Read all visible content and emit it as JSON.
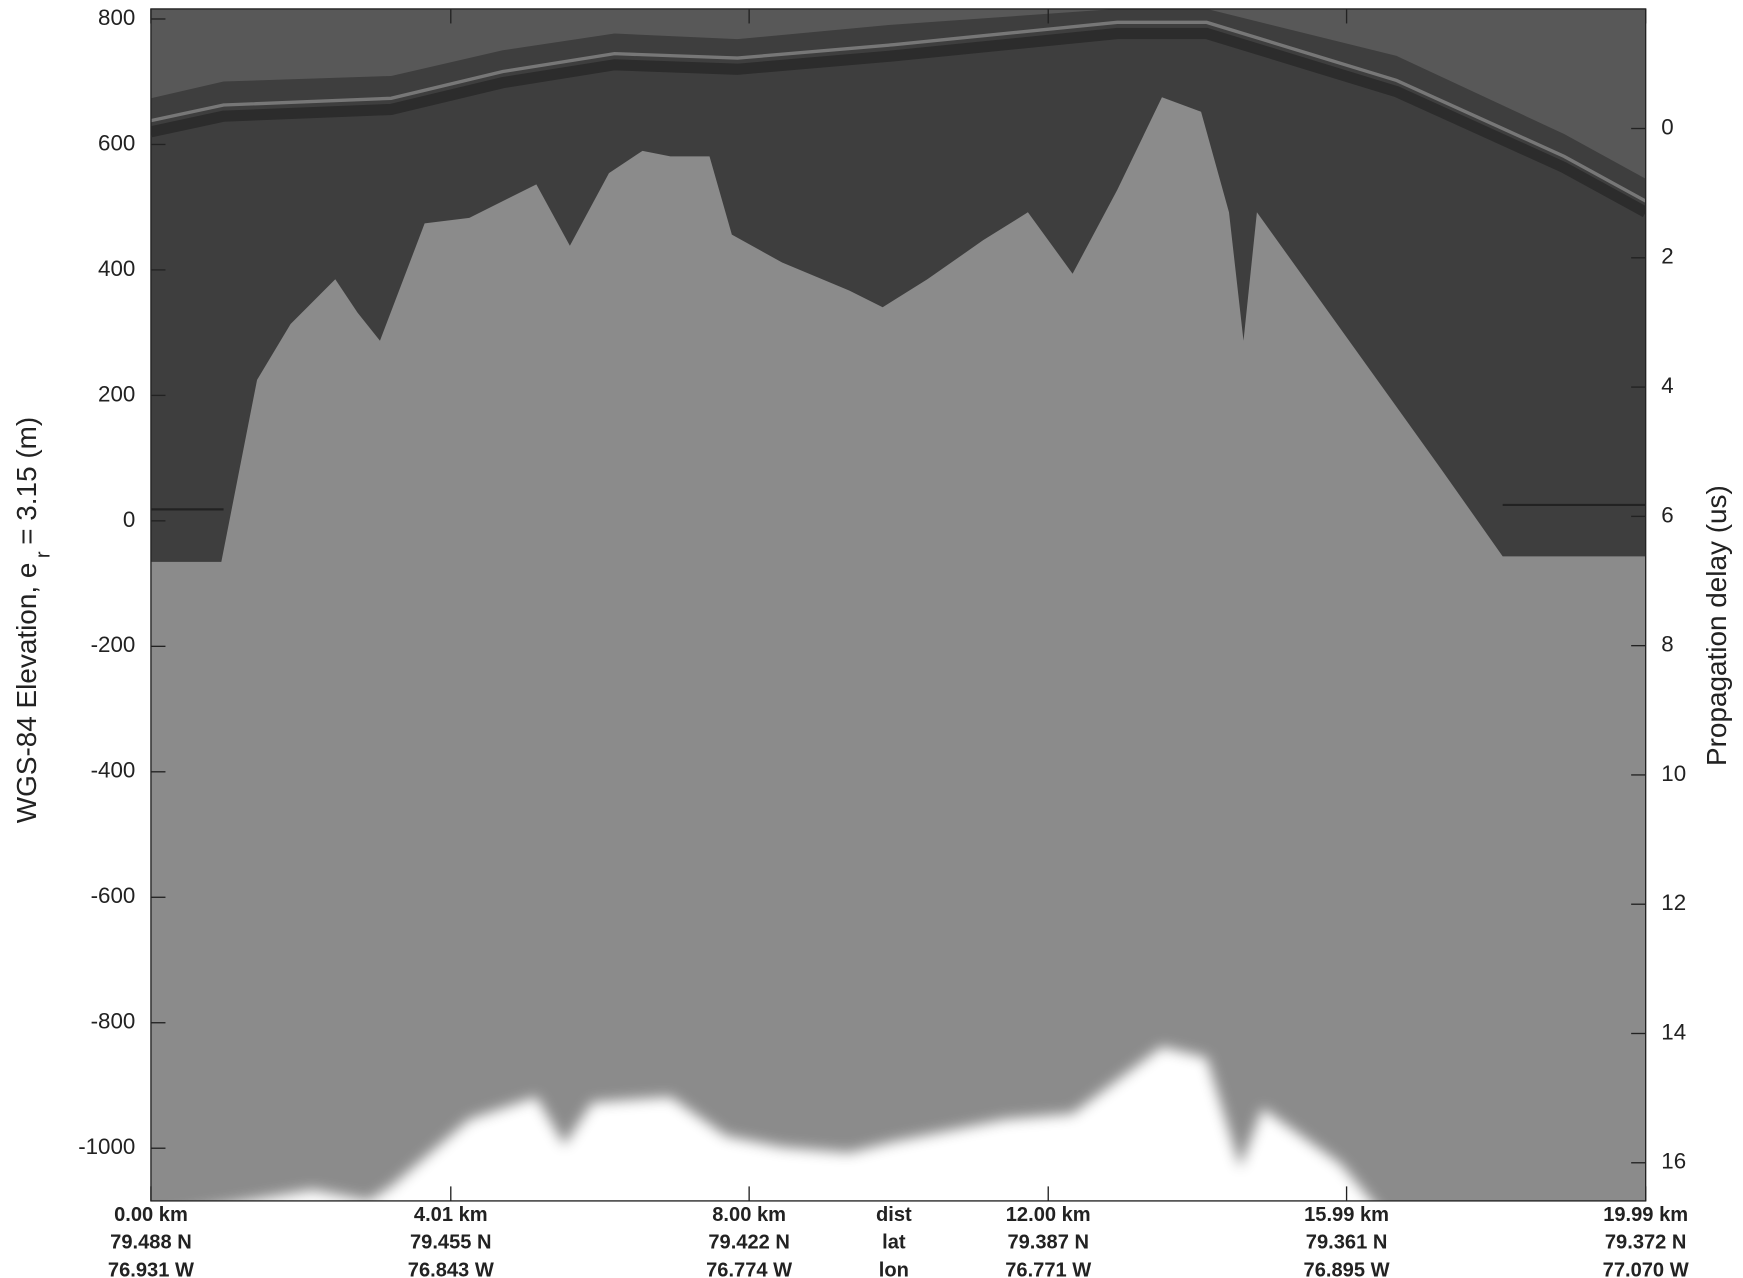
{
  "chart_data": {
    "type": "echogram",
    "ylabel": [
      "WGS-84 Elevation, e",
      "r",
      "= 3.15 (m)"
    ],
    "y2label": "Propagation delay (us)",
    "ylim": [
      -1084,
      816
    ],
    "yticks": [
      -1000,
      -800,
      -600,
      -400,
      -200,
      0,
      200,
      400,
      600,
      800
    ],
    "y2lim": [
      16.59,
      -1.85
    ],
    "y2ticks": [
      0,
      2,
      4,
      6,
      8,
      10,
      12,
      14,
      16
    ],
    "xlim": [
      0,
      19.99
    ],
    "xticks": [
      {
        "value": 0,
        "label": "0.00 km"
      },
      {
        "value": 4.01,
        "label": "4.01 km"
      },
      {
        "value": 8.0,
        "label": "8.00 km"
      },
      {
        "value": 12.0,
        "label": "12.00 km"
      },
      {
        "value": 15.99,
        "label": "15.99 km"
      },
      {
        "value": 19.99,
        "label": "19.99 km"
      }
    ],
    "lat_labels": [
      "79.488 N",
      "79.455 N",
      "79.422 N",
      "79.387 N",
      "79.361 N",
      "79.372 N"
    ],
    "lon_labels": [
      "76.931 W",
      "76.843 W",
      "76.774 W",
      "76.771 W",
      "76.895 W",
      "77.070 W"
    ],
    "row_titles": [
      "dist",
      "lat",
      "lon"
    ]
  }
}
